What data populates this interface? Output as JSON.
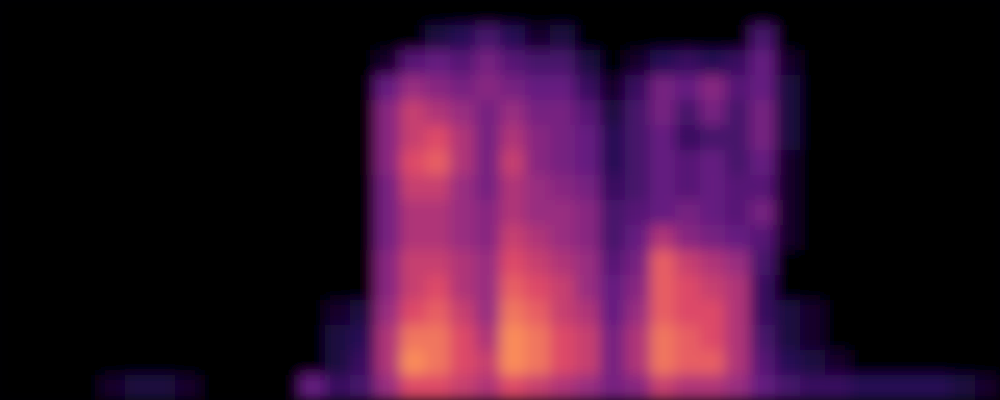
{
  "chart_data": {
    "type": "heatmap",
    "tick_labels": false,
    "color_range": [
      0,
      100
    ],
    "cells": [
      [
        0,
        0,
        0,
        0,
        0,
        0,
        0,
        0,
        0,
        0,
        0,
        0,
        0,
        0,
        0,
        0,
        0,
        0,
        0,
        0,
        0,
        0,
        0,
        0,
        0,
        0,
        0,
        0,
        0,
        0,
        0,
        0,
        0,
        0,
        0,
        0,
        0,
        0,
        0,
        0
      ],
      [
        0,
        0,
        0,
        0,
        0,
        0,
        0,
        0,
        0,
        0,
        0,
        0,
        0,
        0,
        0,
        0,
        0,
        15,
        20,
        30,
        20,
        10,
        15,
        0,
        0,
        0,
        0,
        0,
        0,
        0,
        30,
        0,
        0,
        0,
        0,
        0,
        0,
        0,
        0,
        0
      ],
      [
        0,
        0,
        0,
        0,
        0,
        0,
        0,
        0,
        0,
        0,
        0,
        0,
        0,
        0,
        0,
        10,
        35,
        40,
        35,
        45,
        35,
        30,
        30,
        15,
        0,
        10,
        20,
        25,
        20,
        25,
        40,
        10,
        0,
        0,
        0,
        0,
        0,
        0,
        0,
        0
      ],
      [
        0,
        0,
        0,
        0,
        0,
        0,
        0,
        0,
        0,
        0,
        0,
        0,
        0,
        0,
        0,
        40,
        55,
        50,
        45,
        50,
        45,
        40,
        40,
        25,
        10,
        25,
        45,
        40,
        50,
        35,
        40,
        15,
        0,
        0,
        0,
        0,
        0,
        0,
        0,
        0
      ],
      [
        0,
        0,
        0,
        0,
        0,
        0,
        0,
        0,
        0,
        0,
        0,
        0,
        0,
        0,
        0,
        50,
        65,
        60,
        55,
        45,
        55,
        45,
        45,
        35,
        15,
        30,
        45,
        30,
        45,
        30,
        45,
        15,
        0,
        0,
        0,
        0,
        0,
        0,
        0,
        0
      ],
      [
        0,
        0,
        0,
        0,
        0,
        0,
        0,
        0,
        0,
        0,
        0,
        0,
        0,
        0,
        0,
        50,
        65,
        70,
        60,
        45,
        60,
        50,
        45,
        40,
        20,
        30,
        40,
        25,
        30,
        30,
        45,
        15,
        0,
        0,
        0,
        0,
        0,
        0,
        0,
        0
      ],
      [
        0,
        0,
        0,
        0,
        0,
        0,
        0,
        0,
        0,
        0,
        0,
        0,
        0,
        0,
        0,
        50,
        70,
        75,
        60,
        45,
        65,
        50,
        45,
        40,
        20,
        30,
        40,
        35,
        40,
        30,
        40,
        10,
        0,
        0,
        0,
        0,
        0,
        0,
        0,
        0
      ],
      [
        0,
        0,
        0,
        0,
        0,
        0,
        0,
        0,
        0,
        0,
        0,
        0,
        0,
        0,
        0,
        45,
        65,
        65,
        55,
        45,
        60,
        55,
        50,
        45,
        25,
        30,
        40,
        35,
        40,
        35,
        35,
        10,
        0,
        0,
        0,
        0,
        0,
        0,
        0,
        0
      ],
      [
        0,
        0,
        0,
        0,
        0,
        0,
        0,
        0,
        0,
        0,
        0,
        0,
        0,
        0,
        0,
        45,
        60,
        60,
        55,
        50,
        60,
        55,
        55,
        50,
        30,
        35,
        40,
        45,
        40,
        35,
        45,
        10,
        0,
        0,
        0,
        0,
        0,
        0,
        0,
        0
      ],
      [
        0,
        0,
        0,
        0,
        0,
        0,
        0,
        0,
        0,
        0,
        0,
        0,
        0,
        0,
        0,
        45,
        60,
        60,
        55,
        50,
        65,
        60,
        55,
        50,
        30,
        40,
        60,
        50,
        45,
        40,
        35,
        10,
        0,
        0,
        0,
        0,
        0,
        0,
        0,
        0
      ],
      [
        0,
        0,
        0,
        0,
        0,
        0,
        0,
        0,
        0,
        0,
        0,
        0,
        0,
        0,
        0,
        50,
        65,
        65,
        60,
        55,
        70,
        65,
        60,
        55,
        35,
        45,
        75,
        65,
        60,
        55,
        30,
        0,
        0,
        0,
        0,
        0,
        0,
        0,
        0,
        0
      ],
      [
        0,
        0,
        0,
        0,
        0,
        0,
        0,
        0,
        0,
        0,
        0,
        0,
        0,
        0,
        0,
        50,
        65,
        70,
        60,
        55,
        75,
        70,
        65,
        55,
        40,
        50,
        75,
        70,
        65,
        60,
        25,
        0,
        0,
        0,
        0,
        0,
        0,
        0,
        0,
        0
      ],
      [
        0,
        0,
        0,
        0,
        0,
        0,
        0,
        0,
        0,
        0,
        0,
        0,
        0,
        10,
        15,
        55,
        70,
        75,
        65,
        55,
        80,
        75,
        65,
        60,
        40,
        55,
        75,
        70,
        70,
        60,
        25,
        15,
        10,
        0,
        0,
        0,
        0,
        0,
        0,
        0
      ],
      [
        0,
        0,
        0,
        0,
        0,
        0,
        0,
        0,
        0,
        0,
        0,
        0,
        0,
        15,
        20,
        60,
        80,
        80,
        70,
        60,
        85,
        80,
        70,
        65,
        45,
        60,
        80,
        75,
        70,
        60,
        30,
        15,
        10,
        0,
        0,
        0,
        0,
        0,
        0,
        0
      ],
      [
        0,
        0,
        0,
        0,
        0,
        0,
        0,
        0,
        0,
        0,
        0,
        0,
        0,
        15,
        25,
        60,
        85,
        80,
        70,
        65,
        85,
        80,
        70,
        65,
        45,
        60,
        80,
        75,
        75,
        60,
        35,
        20,
        15,
        10,
        0,
        0,
        0,
        0,
        0,
        0
      ],
      [
        0,
        0,
        0,
        0,
        10,
        15,
        15,
        10,
        0,
        0,
        0,
        0,
        40,
        25,
        30,
        55,
        70,
        70,
        65,
        60,
        70,
        65,
        60,
        55,
        45,
        50,
        65,
        60,
        60,
        55,
        40,
        30,
        25,
        25,
        20,
        20,
        20,
        20,
        15,
        10
      ]
    ]
  }
}
